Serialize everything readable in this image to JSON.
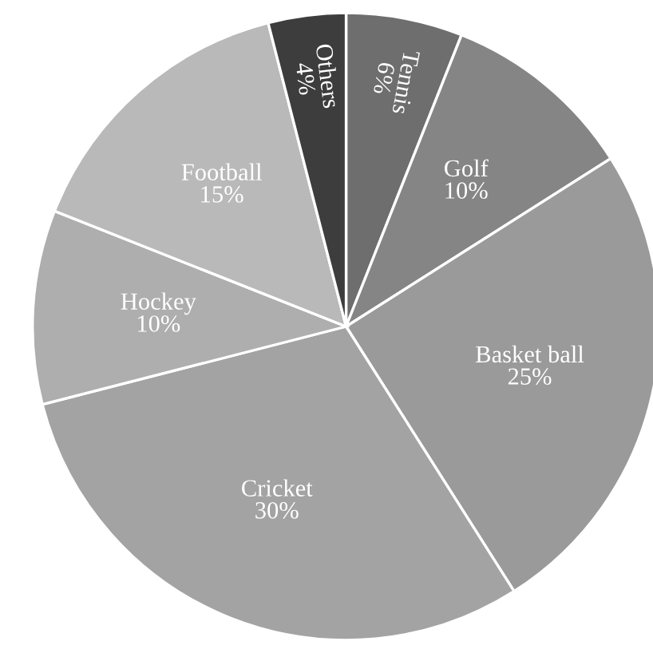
{
  "chart_data": {
    "type": "pie",
    "categories": [
      "Tennis",
      "Golf",
      "Basket ball",
      "Cricket",
      "Hockey",
      "Football",
      "Others"
    ],
    "values": [
      6,
      10,
      25,
      30,
      10,
      15,
      4
    ],
    "value_labels": [
      "6%",
      "10%",
      "25%",
      "30%",
      "10%",
      "15%",
      "4%"
    ],
    "colors": [
      "#6e6e6e",
      "#858585",
      "#9a9a9a",
      "#a3a3a3",
      "#aeaeae",
      "#b9b9b9",
      "#3d3d3d"
    ],
    "legend": false
  }
}
